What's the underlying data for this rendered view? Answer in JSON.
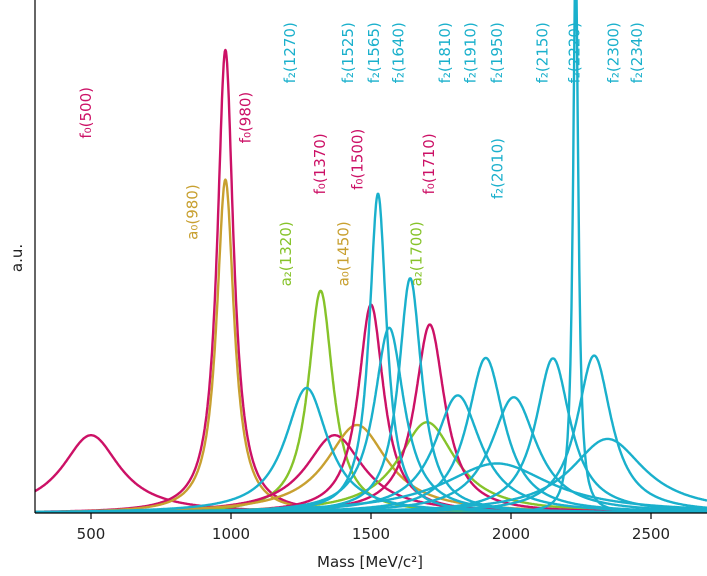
{
  "chart_data": {
    "type": "line",
    "xlabel": "Mass [MeV/c²]",
    "ylabel": "a.u.",
    "xlim": [
      300,
      2700
    ],
    "ylim": [
      0,
      1
    ],
    "x_ticks": [
      "500",
      "1000",
      "1500",
      "2000",
      "2500"
    ],
    "y_ticks": [],
    "grid": false,
    "colors": {
      "f0": "#cc1166",
      "a": "#c8a030",
      "a2": "#86c32a",
      "f2": "#1ab0cc",
      "axis": "#000000"
    },
    "series": [
      {
        "name": "f₀(500)",
        "family": "f0",
        "mass": 500,
        "width": 250,
        "peak": 0.168
      },
      {
        "name": "f₀(980)",
        "family": "f0",
        "mass": 980,
        "width": 70,
        "peak": 1.0
      },
      {
        "name": "a₀(980)",
        "family": "a",
        "mass": 980,
        "width": 75,
        "peak": 0.72
      },
      {
        "name": "a₂(1320)",
        "family": "a2",
        "mass": 1320,
        "width": 107,
        "peak": 0.48
      },
      {
        "name": "f₀(1370)",
        "family": "f0",
        "mass": 1370,
        "width": 250,
        "peak": 0.168
      },
      {
        "name": "a₀(1450)",
        "family": "a",
        "mass": 1450,
        "width": 265,
        "peak": 0.19
      },
      {
        "name": "f₀(1500)",
        "family": "f0",
        "mass": 1500,
        "width": 110,
        "peak": 0.45
      },
      {
        "name": "a₂(1700)",
        "family": "a2",
        "mass": 1700,
        "width": 250,
        "peak": 0.196
      },
      {
        "name": "f₀(1710)",
        "family": "f0",
        "mass": 1710,
        "width": 130,
        "peak": 0.407
      },
      {
        "name": "f₂(1270)",
        "family": "f2",
        "mass": 1270,
        "width": 185,
        "peak": 0.27
      },
      {
        "name": "f₂(1525)",
        "family": "f2",
        "mass": 1525,
        "width": 75,
        "peak": 0.69
      },
      {
        "name": "f₂(1565)",
        "family": "f2",
        "mass": 1565,
        "width": 130,
        "peak": 0.4
      },
      {
        "name": "f₂(1640)",
        "family": "f2",
        "mass": 1640,
        "width": 100,
        "peak": 0.507
      },
      {
        "name": "f₂(1810)",
        "family": "f2",
        "mass": 1810,
        "width": 200,
        "peak": 0.254
      },
      {
        "name": "f₂(1910)",
        "family": "f2",
        "mass": 1910,
        "width": 160,
        "peak": 0.335
      },
      {
        "name": "f₂(1950)",
        "family": "f2",
        "mass": 1950,
        "width": 470,
        "peak": 0.107
      },
      {
        "name": "f₂(2010)",
        "family": "f2",
        "mass": 2010,
        "width": 200,
        "peak": 0.25
      },
      {
        "name": "f₂(2150)",
        "family": "f2",
        "mass": 2150,
        "width": 150,
        "peak": 0.334
      },
      {
        "name": "f₂(2220)",
        "family": "f2",
        "mass": 2231,
        "width": 23,
        "peak": 1.2
      },
      {
        "name": "f₂(2300)",
        "family": "f2",
        "mass": 2297,
        "width": 150,
        "peak": 0.34
      },
      {
        "name": "f₂(2340)",
        "family": "f2",
        "mass": 2345,
        "width": 320,
        "peak": 0.16
      }
    ],
    "annotations": [
      {
        "text": "f₀(500)",
        "family": "f0",
        "x": 500,
        "y": 0.92
      },
      {
        "text": "a₀(980)",
        "family": "a",
        "x": 880,
        "y": 0.71
      },
      {
        "text": "f₀(980)",
        "family": "f0",
        "x": 1070,
        "y": 0.91
      },
      {
        "text": "a₂(1320)",
        "family": "a2",
        "x": 1215,
        "y": 0.63
      },
      {
        "text": "f₀(1370)",
        "family": "f0",
        "x": 1336,
        "y": 0.82
      },
      {
        "text": "a₀(1450)",
        "family": "a",
        "x": 1420,
        "y": 0.63
      },
      {
        "text": "f₀(1500)",
        "family": "f0",
        "x": 1470,
        "y": 0.83
      },
      {
        "text": "a₂(1700)",
        "family": "a2",
        "x": 1680,
        "y": 0.63
      },
      {
        "text": "f₀(1710)",
        "family": "f0",
        "x": 1725,
        "y": 0.82
      },
      {
        "text": "f₂(1270)",
        "family": "f2",
        "x": 1228,
        "y": 1.06
      },
      {
        "text": "f₂(1525)",
        "family": "f2",
        "x": 1436,
        "y": 1.06
      },
      {
        "text": "f₂(1565)",
        "family": "f2",
        "x": 1529,
        "y": 1.06
      },
      {
        "text": "f₂(1640)",
        "family": "f2",
        "x": 1616,
        "y": 1.06
      },
      {
        "text": "f₂(1810)",
        "family": "f2",
        "x": 1783,
        "y": 1.06
      },
      {
        "text": "f₂(1910)",
        "family": "f2",
        "x": 1874,
        "y": 1.06
      },
      {
        "text": "f₂(1950)",
        "family": "f2",
        "x": 1967,
        "y": 1.06
      },
      {
        "text": "f₂(2010)",
        "family": "f2",
        "x": 1970,
        "y": 0.81
      },
      {
        "text": "f₂(2150)",
        "family": "f2",
        "x": 2130,
        "y": 1.06
      },
      {
        "text": "f₂(2220)",
        "family": "f2",
        "x": 2245,
        "y": 1.06
      },
      {
        "text": "f₂(2300)",
        "family": "f2",
        "x": 2384,
        "y": 1.06
      },
      {
        "text": "f₂(2340)",
        "family": "f2",
        "x": 2468,
        "y": 1.06
      }
    ]
  }
}
